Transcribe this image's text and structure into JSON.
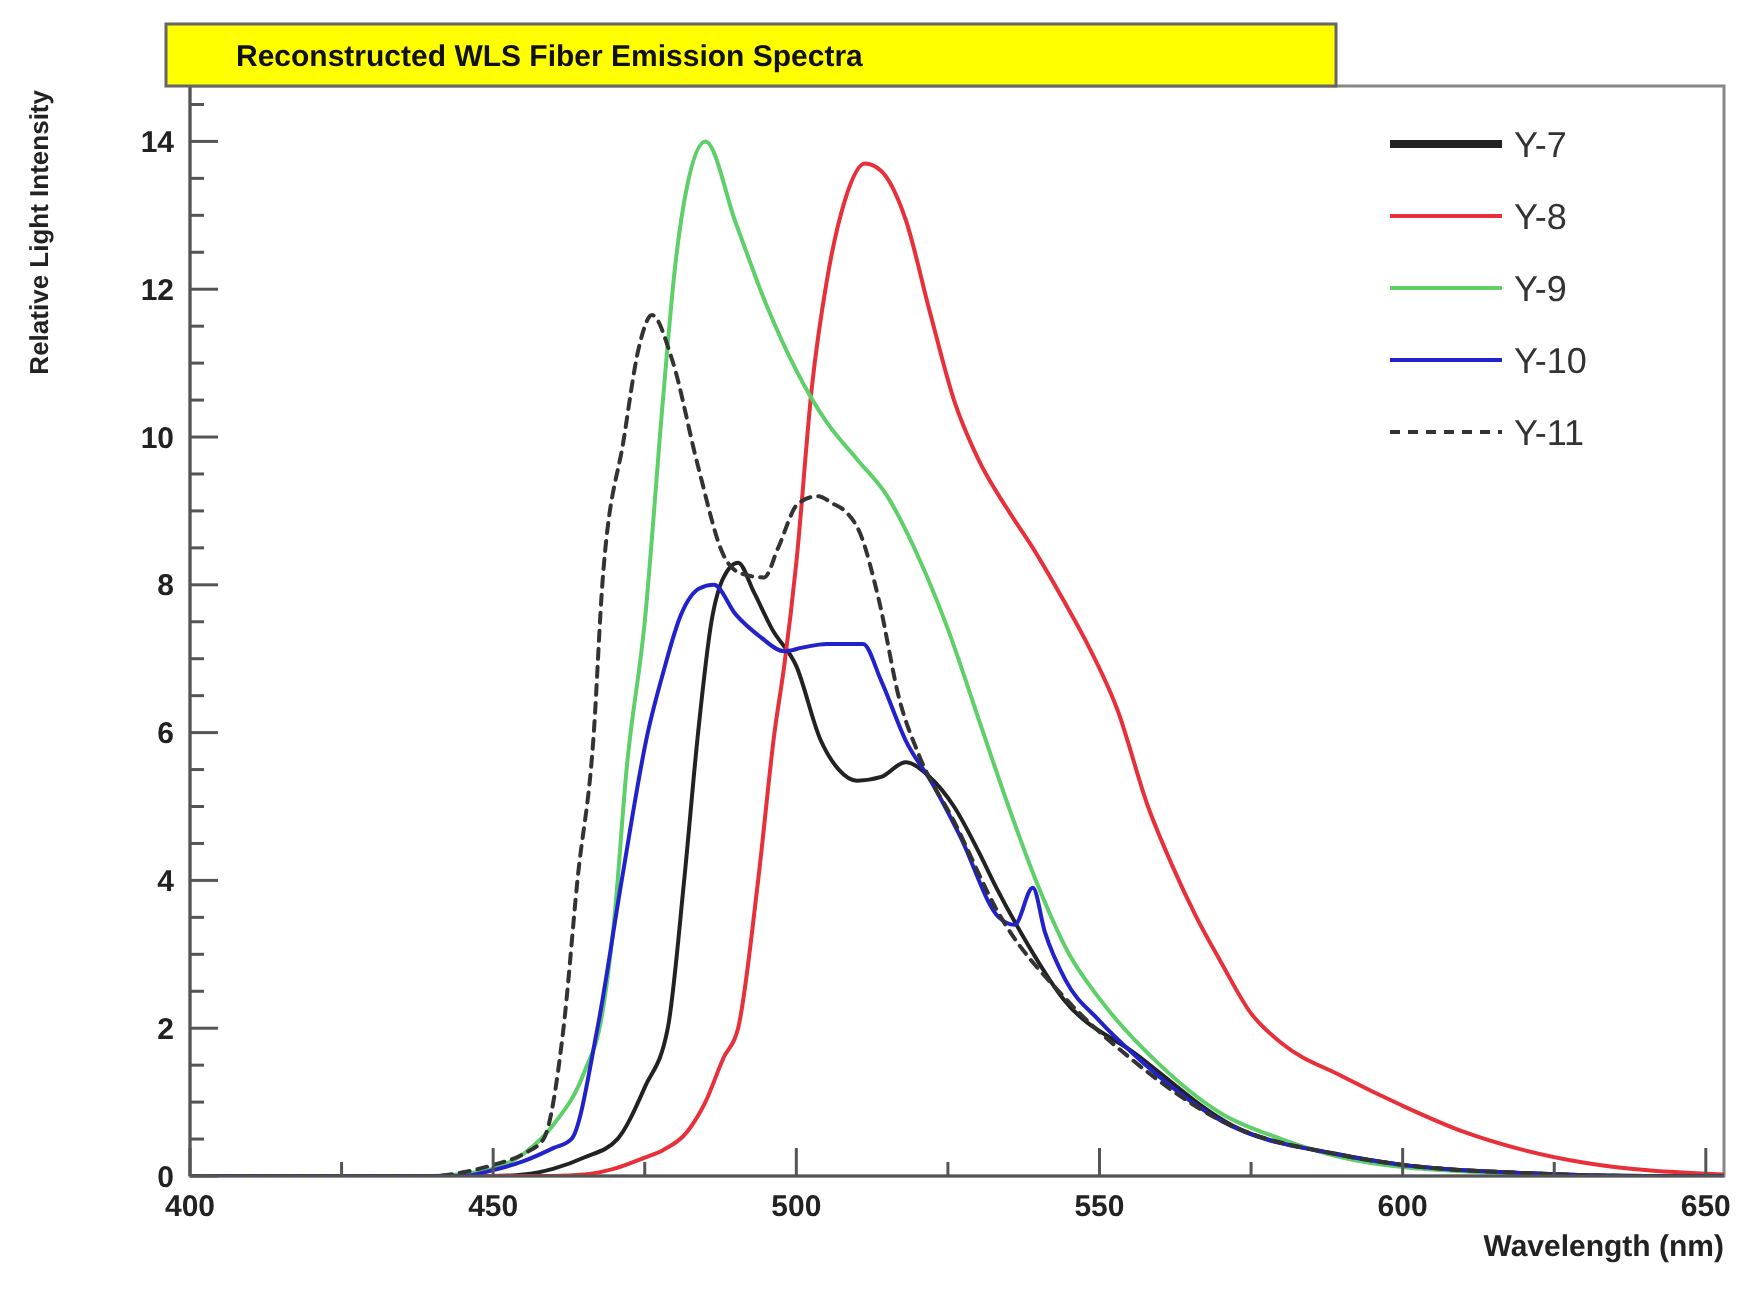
{
  "chart_data": {
    "type": "line",
    "title": "Reconstructed WLS Fiber Emission Spectra",
    "xlabel": "Wavelength (nm)",
    "ylabel": "Relative Light Intensity",
    "xlim": [
      400,
      653
    ],
    "ylim": [
      0,
      14.75
    ],
    "xticks": [
      400,
      {
        "value": 425,
        "label": null
      },
      450,
      {
        "value": 475,
        "label": null
      },
      500,
      {
        "value": 525,
        "label": null
      },
      550,
      {
        "value": 575,
        "label": null
      },
      600,
      {
        "value": 625,
        "label": null
      },
      650
    ],
    "yticks": [
      0,
      {
        "value": 0.5,
        "label": null
      },
      {
        "value": 1,
        "label": null
      },
      {
        "value": 1.5,
        "label": null
      },
      2,
      {
        "value": 2.5,
        "label": null
      },
      {
        "value": 3,
        "label": null
      },
      {
        "value": 3.5,
        "label": null
      },
      4,
      {
        "value": 4.5,
        "label": null
      },
      {
        "value": 5,
        "label": null
      },
      {
        "value": 5.5,
        "label": null
      },
      6,
      {
        "value": 6.5,
        "label": null
      },
      {
        "value": 7,
        "label": null
      },
      {
        "value": 7.5,
        "label": null
      },
      8,
      {
        "value": 8.5,
        "label": null
      },
      {
        "value": 9,
        "label": null
      },
      {
        "value": 9.5,
        "label": null
      },
      10,
      {
        "value": 10.5,
        "label": null
      },
      {
        "value": 11,
        "label": null
      },
      {
        "value": 11.5,
        "label": null
      },
      12,
      {
        "value": 12.5,
        "label": null
      },
      {
        "value": 13,
        "label": null
      },
      {
        "value": 13.5,
        "label": null
      },
      14,
      {
        "value": 14.5,
        "label": null
      }
    ],
    "grid": false,
    "legend": "top right",
    "series": [
      {
        "name": "Y-7",
        "color": "#222222",
        "line_style": "solid",
        "x": [
          400,
          450,
          455,
          460,
          465,
          470.5,
          475,
          478.8,
          481.5,
          483.8,
          486,
          488,
          490.4,
          493,
          496,
          500,
          504,
          507,
          510,
          514,
          518,
          522,
          526,
          530,
          533,
          537,
          544,
          556,
          572,
          589,
          600,
          620,
          640,
          653
        ],
        "values": [
          0,
          0,
          0.02,
          0.1,
          0.25,
          0.5,
          1.2,
          2,
          4,
          6,
          7.5,
          8.1,
          8.3,
          7.9,
          7.4,
          6.9,
          5.9,
          5.5,
          5.35,
          5.4,
          5.6,
          5.4,
          5.0,
          4.4,
          3.9,
          3.3,
          2.4,
          1.65,
          0.68,
          0.3,
          0.15,
          0.04,
          0,
          0
        ]
      },
      {
        "name": "Y-8",
        "color": "#e8303a",
        "line_style": "solid",
        "x": [
          400,
          460,
          465,
          470,
          475,
          478,
          482,
          485,
          488,
          490.4,
          493.7,
          496.4,
          498,
          500,
          502.6,
          505,
          508,
          511.3,
          514,
          518,
          522,
          526,
          530,
          535,
          539,
          544,
          548,
          553,
          558,
          562,
          566,
          570,
          575,
          580,
          590,
          600,
          610,
          620,
          630,
          640,
          650,
          653
        ],
        "values": [
          0,
          0,
          0.02,
          0.1,
          0.25,
          0.35,
          0.6,
          1.0,
          1.6,
          2,
          4,
          6,
          6.9,
          8.3,
          10.7,
          12.1,
          13.2,
          13.7,
          13.6,
          12.95,
          11.7,
          10.5,
          9.7,
          9.0,
          8.5,
          7.8,
          7.2,
          6.3,
          5.0,
          4.2,
          3.5,
          2.9,
          2.2,
          1.8,
          1.35,
          0.95,
          0.6,
          0.35,
          0.18,
          0.08,
          0.03,
          0.02
        ]
      },
      {
        "name": "Y-9",
        "color": "#5fcf6a",
        "line_style": "solid",
        "x": [
          400,
          440,
          445,
          450,
          455,
          460,
          465,
          468,
          470,
          472,
          475,
          478,
          480,
          482,
          485,
          490,
          495,
          500,
          505,
          510,
          515,
          520,
          525,
          530,
          535,
          540,
          545,
          550,
          560,
          570,
          580,
          590,
          600,
          620,
          640,
          653
        ],
        "values": [
          0,
          0,
          0.03,
          0.1,
          0.3,
          0.7,
          1.4,
          2.2,
          3.5,
          5.5,
          7.5,
          10.5,
          12.3,
          13.4,
          14.0,
          12.9,
          11.8,
          10.9,
          10.2,
          9.7,
          9.2,
          8.4,
          7.4,
          6.2,
          5.0,
          3.9,
          3.0,
          2.4,
          1.5,
          0.85,
          0.5,
          0.25,
          0.12,
          0.03,
          0,
          0
        ]
      },
      {
        "name": "Y-10",
        "color": "#2222cc",
        "line_style": "solid",
        "x": [
          400,
          445,
          450,
          455,
          460,
          462.9,
          467.2,
          471.2,
          475.5,
          478,
          481,
          484,
          486.4,
          490,
          494,
          498,
          501,
          505,
          508,
          511,
          514,
          518,
          522.5,
          527,
          533.4,
          536,
          539,
          541,
          544.4,
          550,
          555.6,
          570,
          590,
          600,
          620,
          640,
          653
        ],
        "values": [
          0,
          0,
          0.08,
          0.2,
          0.38,
          0.5,
          2,
          4,
          6,
          6.8,
          7.6,
          7.95,
          8.0,
          7.6,
          7.3,
          7.1,
          7.15,
          7.2,
          7.2,
          7.2,
          6.7,
          5.9,
          5.3,
          4.6,
          3.5,
          3.4,
          3.9,
          3.3,
          2.65,
          2.1,
          1.65,
          0.75,
          0.28,
          0.15,
          0.04,
          0,
          0
        ]
      },
      {
        "name": "Y-11",
        "color": "#333333",
        "line_style": "dashed",
        "x": [
          400,
          440,
          445,
          450,
          455,
          458.3,
          461.6,
          463.9,
          466.6,
          468,
          471.6,
          474,
          476.2,
          479.5,
          483.8,
          488,
          491,
          494.7,
          497,
          500.3,
          503.6,
          506,
          508,
          510.5,
          513.6,
          517,
          520.2,
          526,
          533.4,
          544.4,
          555,
          570,
          590,
          600,
          620,
          640,
          653
        ],
        "values": [
          0,
          0,
          0.05,
          0.15,
          0.3,
          0.5,
          2,
          4,
          6,
          8,
          10,
          11.2,
          11.65,
          11.05,
          9.6,
          8.4,
          8.15,
          8.1,
          8.5,
          9.1,
          9.2,
          9.1,
          9.0,
          8.7,
          7.8,
          6.45,
          5.7,
          4.8,
          3.55,
          2.4,
          1.6,
          0.75,
          0.28,
          0.15,
          0.04,
          0,
          0
        ]
      }
    ]
  }
}
